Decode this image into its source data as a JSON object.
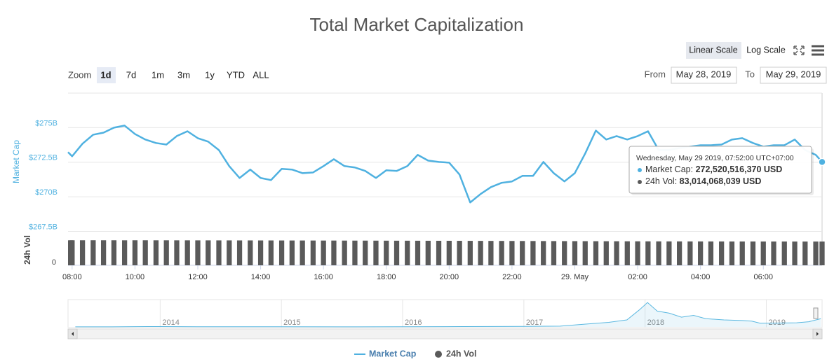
{
  "chart_data": {
    "type": "line",
    "title": "Total Market Capitalization",
    "scale_buttons": [
      "Linear Scale",
      "Log Scale"
    ],
    "zoom_label": "Zoom",
    "zoom_buttons": [
      "1d",
      "7d",
      "1m",
      "3m",
      "1y",
      "YTD",
      "ALL"
    ],
    "from_label": "From",
    "from": "May 28, 2019",
    "to_label": "To",
    "to": "May 29, 2019",
    "y_label": "Market Cap",
    "y2_label": "24h Vol",
    "x": [
      7.87,
      8,
      8.33,
      8.67,
      9,
      9.33,
      9.67,
      10,
      10.33,
      10.67,
      11,
      11.33,
      11.67,
      12,
      12.33,
      12.67,
      13,
      13.33,
      13.67,
      14,
      14.33,
      14.67,
      15,
      15.33,
      15.67,
      16,
      16.33,
      16.67,
      17,
      17.33,
      17.67,
      18,
      18.33,
      18.67,
      19,
      19.33,
      19.67,
      20,
      20.33,
      20.67,
      21,
      21.33,
      21.67,
      22,
      22.33,
      22.67,
      23,
      23.33,
      23.67,
      24,
      24.33,
      24.67,
      25,
      25.33,
      25.67,
      26,
      26.33,
      26.67,
      27,
      27.33,
      27.67,
      28,
      28.33,
      28.67,
      29,
      29.33,
      29.67,
      30,
      30.33,
      30.67,
      31,
      31.33,
      31.67,
      31.87
    ],
    "xlim": [
      7.87,
      31.87
    ],
    "xticks": [
      {
        "value": 8,
        "label": "08:00"
      },
      {
        "value": 10,
        "label": "10:00"
      },
      {
        "value": 12,
        "label": "12:00"
      },
      {
        "value": 14,
        "label": "14:00"
      },
      {
        "value": 16,
        "label": "16:00"
      },
      {
        "value": 18,
        "label": "18:00"
      },
      {
        "value": 20,
        "label": "20:00"
      },
      {
        "value": 22,
        "label": "22:00"
      },
      {
        "value": 24,
        "label": "29. May"
      },
      {
        "value": 26,
        "label": "02:00"
      },
      {
        "value": 28,
        "label": "04:00"
      },
      {
        "value": 30,
        "label": "06:00"
      }
    ],
    "ylim": [
      267.5,
      277.5
    ],
    "yticks": [
      {
        "value": 267.5,
        "label": "$267.5B"
      },
      {
        "value": 270,
        "label": "$270B"
      },
      {
        "value": 272.5,
        "label": "$272.5B"
      },
      {
        "value": 275,
        "label": "$275B"
      }
    ],
    "y2lim": [
      0,
      110
    ],
    "y2ticks": [
      0
    ],
    "grid": true,
    "series": [
      {
        "name": "Market Cap",
        "color": "#4fb1e0",
        "type": "line",
        "values": [
          273.23,
          272.93,
          273.84,
          274.49,
          274.64,
          275.0,
          275.15,
          274.54,
          274.14,
          273.89,
          273.78,
          274.39,
          274.74,
          274.24,
          273.99,
          273.38,
          272.22,
          271.36,
          271.97,
          271.36,
          271.21,
          272.02,
          271.97,
          271.71,
          271.76,
          272.22,
          272.72,
          272.22,
          272.12,
          271.87,
          271.36,
          271.92,
          271.87,
          272.22,
          273.03,
          272.62,
          272.52,
          272.47,
          271.61,
          269.59,
          270.2,
          270.7,
          271.01,
          271.11,
          271.51,
          271.51,
          272.52,
          271.71,
          271.11,
          271.71,
          273.13,
          274.79,
          274.14,
          274.39,
          274.14,
          274.39,
          274.74,
          273.38,
          273.38,
          273.53,
          273.63,
          273.73,
          273.73,
          273.78,
          274.14,
          274.24,
          273.89,
          273.63,
          273.73,
          273.73,
          274.14,
          273.38,
          273.03,
          272.52
        ]
      },
      {
        "name": "24h Vol",
        "color": "#5a5a5a",
        "type": "column",
        "axis": "y2",
        "values": [
          87.3,
          87.4,
          87.4,
          87.5,
          87.4,
          87.4,
          87.3,
          87.4,
          87.4,
          87.3,
          87.3,
          87.2,
          87.2,
          87.1,
          87.1,
          87.0,
          87.0,
          86.9,
          86.9,
          86.8,
          86.8,
          86.7,
          86.6,
          86.6,
          86.5,
          86.4,
          86.4,
          86.3,
          86.2,
          86.2,
          86.1,
          86.0,
          85.9,
          85.9,
          85.8,
          85.7,
          85.6,
          85.6,
          85.5,
          85.4,
          85.3,
          85.2,
          85.1,
          85.0,
          84.9,
          84.8,
          84.7,
          84.6,
          84.5,
          84.4,
          84.3,
          84.2,
          84.1,
          84.0,
          83.9,
          83.8,
          83.7,
          83.6,
          83.5,
          83.5,
          83.4,
          83.4,
          83.3,
          83.3,
          83.2,
          83.2,
          83.2,
          83.1,
          83.1,
          83.1,
          83.0,
          83.0,
          83.0,
          83.01
        ]
      }
    ],
    "tooltip": {
      "header": "Wednesday, May 29 2019, 07:52:00 UTC+07:00",
      "rows": [
        {
          "label": "Market Cap:",
          "value": "272,520,516,370 USD"
        },
        {
          "label": "24h Vol:",
          "value": "83,014,068,039 USD"
        }
      ]
    },
    "navigator": {
      "type": "area",
      "color": "#5bb8e0",
      "x": [
        2013.3,
        2013.6,
        2013.9,
        2014.0,
        2014.3,
        2014.6,
        2015.0,
        2015.5,
        2016.0,
        2016.5,
        2017.0,
        2017.3,
        2017.5,
        2017.7,
        2017.85,
        2017.95,
        2018.02,
        2018.1,
        2018.2,
        2018.3,
        2018.4,
        2018.5,
        2018.65,
        2018.8,
        2018.88,
        2018.95,
        2019.1,
        2019.25,
        2019.35,
        2019.45
      ],
      "values": [
        1.5,
        2,
        10,
        10,
        7,
        6,
        5,
        3.5,
        6,
        10,
        17,
        25,
        90,
        150,
        230,
        550,
        800,
        520,
        450,
        320,
        380,
        270,
        230,
        210,
        190,
        120,
        125,
        135,
        170,
        270
      ],
      "xlim": [
        2013.24,
        2019.46
      ],
      "ylim": [
        0,
        850
      ],
      "xticks": [
        2014,
        2015,
        2016,
        2017,
        2018,
        2019
      ]
    },
    "legend": "bottom"
  }
}
